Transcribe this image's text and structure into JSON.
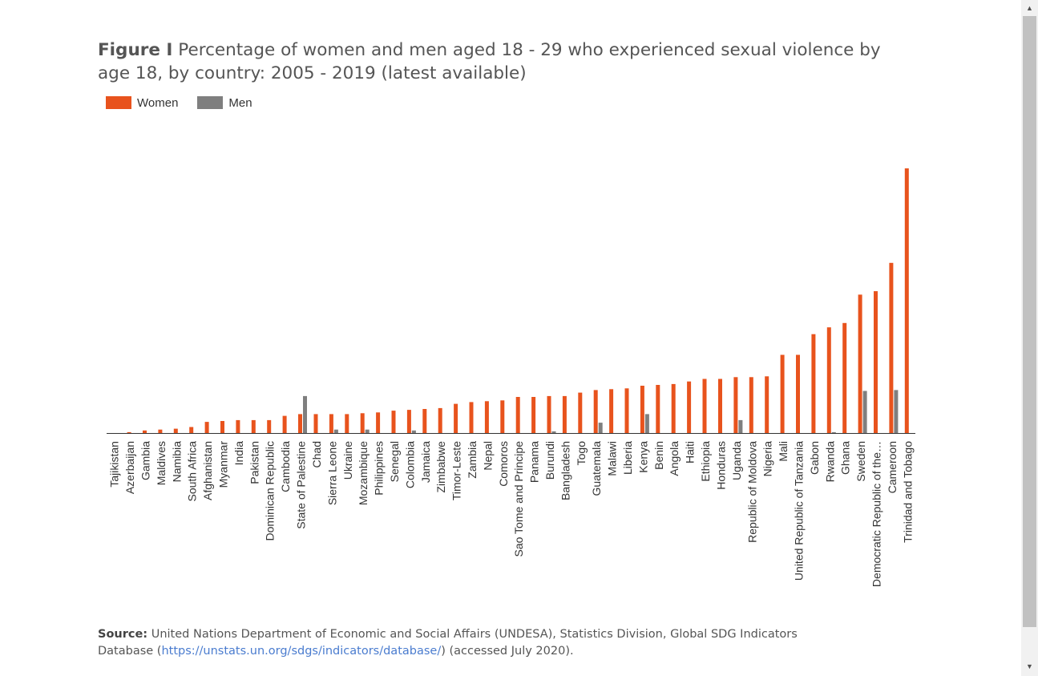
{
  "figure": {
    "label": "Figure I",
    "title": "Percentage of women and men aged 18 - 29 who experienced sexual violence by age 18, by country: 2005 - 2019 (latest available)"
  },
  "legend": [
    {
      "name": "Women",
      "color": "#e8531d"
    },
    {
      "name": "Men",
      "color": "#7f7f7f"
    }
  ],
  "chart_data": {
    "type": "bar",
    "categories": [
      "Tajikistan",
      "Azerbaijan",
      "Gambia",
      "Maldives",
      "Namibia",
      "South Africa",
      "Afghanistan",
      "Myanmar",
      "India",
      "Pakistan",
      "Dominican Republic",
      "Cambodia",
      "State of Palestine",
      "Chad",
      "Sierra Leone",
      "Ukraine",
      "Mozambique",
      "Philippines",
      "Senegal",
      "Colombia",
      "Jamaica",
      "Zimbabwe",
      "Timor-Leste",
      "Zambia",
      "Nepal",
      "Comoros",
      "Sao Tome and Principe",
      "Panama",
      "Burundi",
      "Bangladesh",
      "Togo",
      "Guatemala",
      "Malawi",
      "Liberia",
      "Kenya",
      "Benin",
      "Angola",
      "Haiti",
      "Ethiopia",
      "Honduras",
      "Uganda",
      "Republic of Moldova",
      "Nigeria",
      "Mali",
      "United Republic of Tanzania",
      "Gabon",
      "Rwanda",
      "Ghana",
      "Sweden",
      "Democratic Republic of the…",
      "Cameroon",
      "Trinidad and Tobago"
    ],
    "series": [
      {
        "name": "Women",
        "color": "#e8531d",
        "values": [
          0,
          0.1,
          0.3,
          0.4,
          0.5,
          0.7,
          1.3,
          1.4,
          1.5,
          1.5,
          1.5,
          2.0,
          2.2,
          2.2,
          2.2,
          2.2,
          2.3,
          2.4,
          2.6,
          2.7,
          2.8,
          2.9,
          3.4,
          3.6,
          3.7,
          3.8,
          4.2,
          4.2,
          4.3,
          4.3,
          4.7,
          5.0,
          5.1,
          5.2,
          5.5,
          5.6,
          5.7,
          6.0,
          6.3,
          6.3,
          6.5,
          6.5,
          6.6,
          9.1,
          9.1,
          11.5,
          12.3,
          12.8,
          16.1,
          16.5,
          19.8,
          30.8
        ]
      },
      {
        "name": "Men",
        "color": "#7f7f7f",
        "values": [
          0,
          0,
          0,
          0,
          0,
          0,
          0,
          0,
          0,
          0,
          0,
          0,
          4.3,
          0,
          0.4,
          0,
          0.4,
          0,
          0,
          0.3,
          0,
          0,
          0,
          0,
          0,
          0,
          0,
          0,
          0.2,
          0,
          0,
          1.2,
          0,
          0,
          2.2,
          0,
          0,
          0,
          0,
          0,
          1.5,
          0,
          0,
          0,
          0,
          0,
          0.1,
          0,
          4.9,
          0,
          5.0,
          0
        ]
      }
    ],
    "ylim": [
      0,
      32
    ],
    "grid": false,
    "legend_position": "top-left"
  },
  "source": {
    "label": "Source:",
    "text_before": "United Nations Department of Economic and Social Affairs (UNDESA), Statistics Division, Global SDG Indicators Database (",
    "link_text": "https://unstats.un.org/sdgs/indicators/database/",
    "text_after": ") (accessed July 2020)."
  },
  "scrollbar": {
    "up_icon": "arrow-up-icon",
    "down_icon": "arrow-down-icon"
  }
}
